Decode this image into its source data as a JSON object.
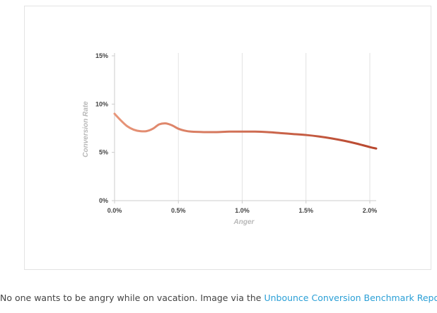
{
  "chart_data": {
    "type": "line",
    "xlabel": "Anger",
    "ylabel": "Conversion Rate",
    "xlim": [
      0,
      2.05
    ],
    "ylim": [
      0,
      15
    ],
    "x_ticks": [
      "0.0%",
      "0.5%",
      "1.0%",
      "1.5%",
      "2.0%"
    ],
    "y_ticks": [
      "0%",
      "5%",
      "10%",
      "15%"
    ],
    "grid": "vertical",
    "colors": {
      "start": "#e8967a",
      "end": "#b8472e",
      "grid": "#e2e2e2",
      "axis": "#cccccc"
    },
    "series": [
      {
        "x": [
          0.0,
          0.05,
          0.1,
          0.15,
          0.2,
          0.25,
          0.3,
          0.35,
          0.4,
          0.45,
          0.5,
          0.55,
          0.6,
          0.7,
          0.8,
          0.9,
          1.0,
          1.1,
          1.2,
          1.3,
          1.4,
          1.5,
          1.6,
          1.7,
          1.8,
          1.9,
          2.0,
          2.05
        ],
        "y": [
          9.0,
          8.3,
          7.7,
          7.35,
          7.2,
          7.2,
          7.45,
          7.9,
          8.0,
          7.8,
          7.45,
          7.25,
          7.15,
          7.1,
          7.1,
          7.15,
          7.15,
          7.15,
          7.1,
          7.0,
          6.9,
          6.8,
          6.65,
          6.45,
          6.2,
          5.9,
          5.55,
          5.4
        ]
      }
    ]
  },
  "caption": {
    "text": "No one wants to be angry while on vacation. Image via the ",
    "link": "Unbounce Conversion Benchmark Report",
    "end": "."
  }
}
